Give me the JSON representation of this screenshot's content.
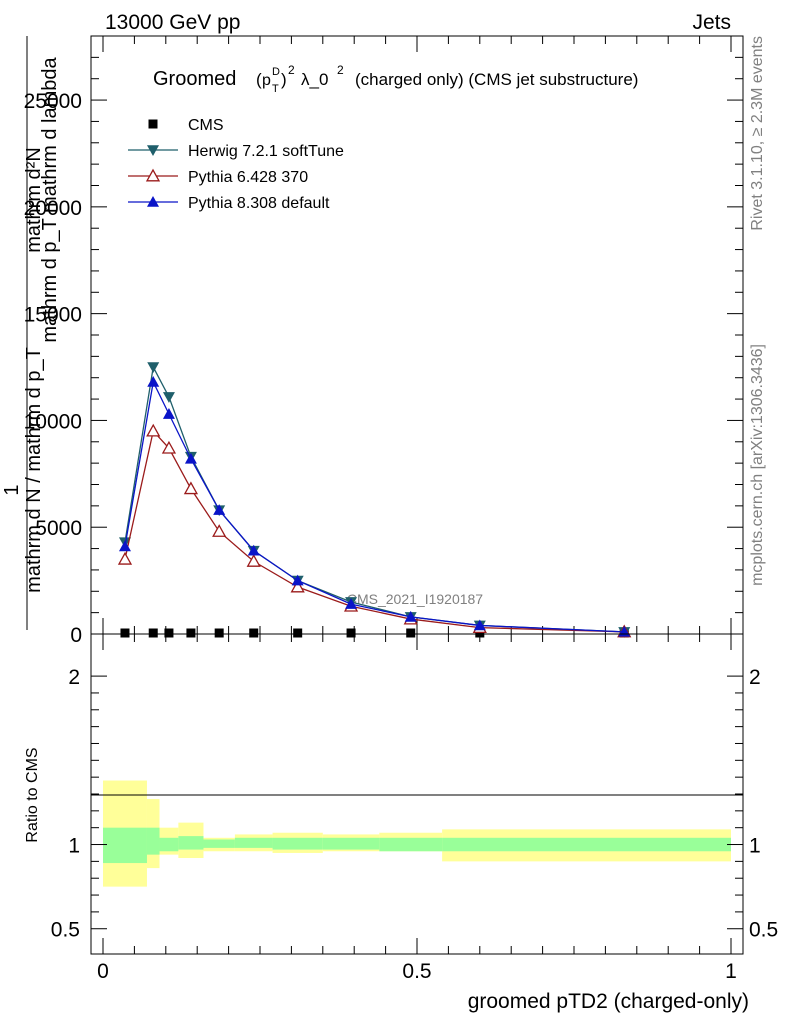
{
  "header": {
    "left": "13000 GeV pp",
    "right": "Jets"
  },
  "side_labels": {
    "rivet": "Rivet 3.1.10, ≥ 2.3M events",
    "mcplots": "mcplots.cern.ch [arXiv:1306.3436]"
  },
  "watermark": "CMS_2021_I1920187",
  "colors": {
    "cms": "#000000",
    "herwig": "#1f5f6b",
    "pythia6": "#9b1b1b",
    "pythia8": "#0a14c8",
    "band_outer": "#ffff99",
    "band_inner": "#99ff99"
  },
  "chart_data": [
    {
      "type": "line",
      "title": "Groomed (p_T^D)^2 λ_0^2  (charged only) (CMS jet substructure)",
      "title_parts": {
        "prefix": "Groomed",
        "pt": "p",
        "sub": "T",
        "sup": "D",
        "exp": "2",
        "lambda": "λ_0",
        "lambda_exp": "2",
        "suffix": "(charged only) (CMS jet substructure)"
      },
      "ylabel_lines": [
        "mathrm d²N",
        "mathrm d p_T mathrm d lambda",
        "1",
        "mathrm d N / mathrm d p_T"
      ],
      "xlim": [
        0,
        1
      ],
      "ylim": [
        0,
        28000
      ],
      "yticks": [
        0,
        5000,
        10000,
        15000,
        20000,
        25000
      ],
      "ytick_labels": [
        "0",
        "5000",
        "10000",
        "15000",
        "20000",
        "25000"
      ],
      "legend_position": "top-left",
      "series": [
        {
          "name": "CMS",
          "marker": "square",
          "x": [
            0.035,
            0.08,
            0.105,
            0.14,
            0.185,
            0.24,
            0.31,
            0.395,
            0.49,
            0.6,
            0.83
          ],
          "values": [
            0,
            0,
            0,
            0,
            0,
            0,
            0,
            0,
            0,
            0,
            0
          ]
        },
        {
          "name": "Herwig 7.2.1 softTune",
          "marker": "triangle-down",
          "x": [
            0.035,
            0.08,
            0.105,
            0.14,
            0.185,
            0.24,
            0.31,
            0.395,
            0.49,
            0.6,
            0.83
          ],
          "values": [
            4300,
            12500,
            11100,
            8300,
            5800,
            3900,
            2500,
            1500,
            800,
            400,
            100
          ]
        },
        {
          "name": "Pythia 6.428 370",
          "marker": "triangle-up-open",
          "x": [
            0.035,
            0.08,
            0.105,
            0.14,
            0.185,
            0.24,
            0.31,
            0.395,
            0.49,
            0.6,
            0.83
          ],
          "values": [
            3500,
            9500,
            8700,
            6800,
            4800,
            3400,
            2200,
            1300,
            700,
            300,
            100
          ]
        },
        {
          "name": "Pythia 8.308 default",
          "marker": "triangle-up",
          "x": [
            0.035,
            0.08,
            0.105,
            0.14,
            0.185,
            0.24,
            0.31,
            0.395,
            0.49,
            0.6,
            0.83
          ],
          "values": [
            4100,
            11800,
            10300,
            8200,
            5800,
            3900,
            2500,
            1400,
            800,
            400,
            100
          ]
        }
      ]
    },
    {
      "type": "area",
      "ylabel": "Ratio to CMS",
      "xlabel": "groomed pTD2 (charged-only)",
      "xlim": [
        0,
        1
      ],
      "ylim": [
        0.35,
        2.25
      ],
      "xticks": [
        0,
        0.5,
        1
      ],
      "xtick_labels": [
        "0",
        "0.5",
        "1"
      ],
      "yticks": [
        0.5,
        1,
        2
      ],
      "ytick_labels": [
        "0.5",
        "1",
        "2"
      ],
      "bins": [
        0,
        0.07,
        0.09,
        0.12,
        0.16,
        0.21,
        0.27,
        0.35,
        0.44,
        0.54,
        1.0
      ],
      "band_outer_low": [
        0.75,
        0.86,
        0.94,
        0.92,
        0.96,
        0.96,
        0.95,
        0.96,
        0.96,
        0.9
      ],
      "band_outer_high": [
        1.38,
        1.27,
        1.1,
        1.13,
        1.04,
        1.06,
        1.07,
        1.06,
        1.07,
        1.09
      ],
      "band_inner_low": [
        0.89,
        0.94,
        0.96,
        0.97,
        0.98,
        0.98,
        0.97,
        0.97,
        0.96,
        0.96
      ],
      "band_inner_high": [
        1.1,
        1.1,
        1.04,
        1.05,
        1.03,
        1.04,
        1.04,
        1.04,
        1.04,
        1.04
      ]
    }
  ]
}
